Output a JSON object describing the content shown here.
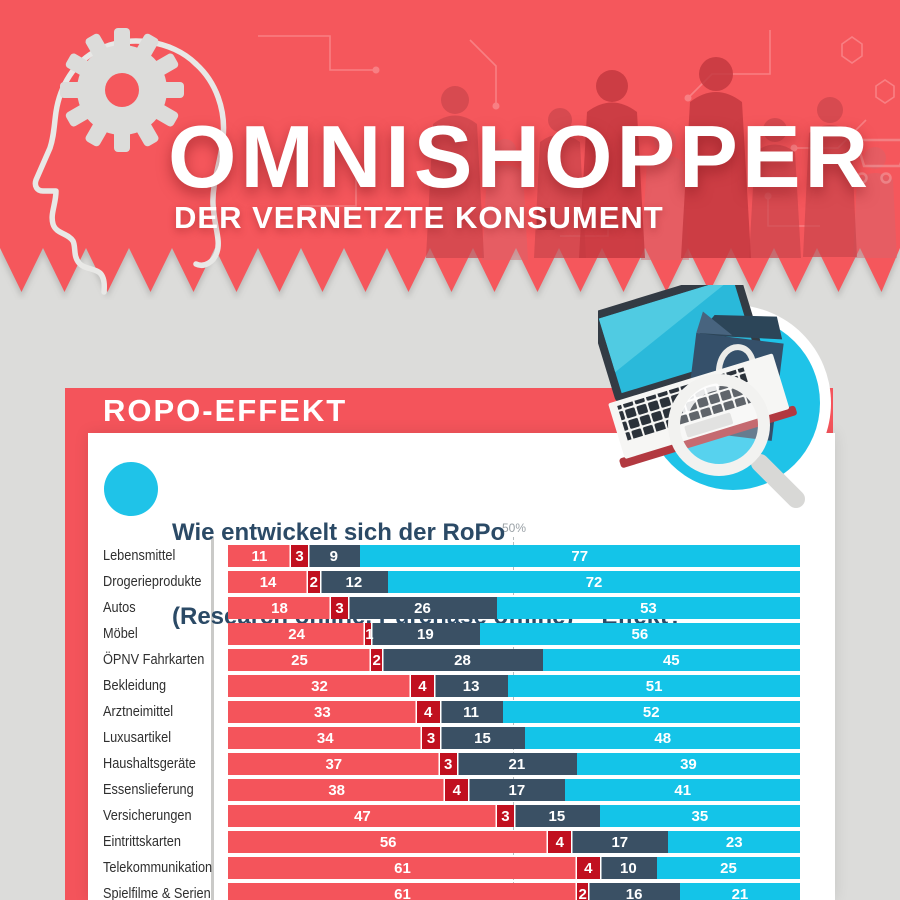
{
  "header": {
    "title": "OMNISHOPPER",
    "subtitle": "DER VERNETZTE KONSUMENT",
    "background_color": "#f5575c",
    "illustration": "head-profile-with-gear-icon",
    "backdrop": "shopper-silhouettes-and-circuit-traces"
  },
  "section": {
    "banner_label": "ROPO-EFFEKT",
    "banner_color": "#f4545b",
    "illustration": "laptop-shopping-bag-magnifier-icon"
  },
  "question": {
    "line1": "Wie entwickelt sich der RoPo",
    "line2": "(Research online, Purchase offline)  - Effekt?"
  },
  "colors": {
    "header_coral": "#f5575c",
    "bar_coral": "#f4545b",
    "bar_dark_red": "#c1101f",
    "bar_navy": "#3a5064",
    "bar_cyan": "#14c4e8",
    "accent_cyan": "#1fc3e8",
    "background_gray": "#dcdcda",
    "card_white": "#ffffff",
    "question_navy": "#2b4a66"
  },
  "chart_data": {
    "type": "bar",
    "variant": "horizontal-stacked",
    "title": "Wie entwickelt sich der RoPo (Research online, Purchase offline) - Effekt?",
    "unit": "percent",
    "xlim": [
      0,
      100
    ],
    "axis": {
      "gridline_value": 50,
      "gridline_label": "50%",
      "gridline_style": "dashed"
    },
    "legend_visible": false,
    "series_colors": [
      "#f4545b",
      "#c1101f",
      "#3a5064",
      "#14c4e8"
    ],
    "rows": [
      {
        "label": "Lebensmittel",
        "values": [
          11,
          3,
          9,
          77
        ]
      },
      {
        "label": "Drogerieprodukte",
        "values": [
          14,
          2,
          12,
          72
        ]
      },
      {
        "label": "Autos",
        "values": [
          18,
          3,
          26,
          53
        ]
      },
      {
        "label": "Möbel",
        "values": [
          24,
          1,
          19,
          56
        ]
      },
      {
        "label": "ÖPNV Fahrkarten",
        "values": [
          25,
          2,
          28,
          45
        ]
      },
      {
        "label": "Bekleidung",
        "values": [
          32,
          4,
          13,
          51
        ]
      },
      {
        "label": "Arztneimittel",
        "values": [
          33,
          4,
          11,
          52
        ]
      },
      {
        "label": "Luxusartikel",
        "values": [
          34,
          3,
          15,
          48
        ]
      },
      {
        "label": "Haushaltsgeräte",
        "values": [
          37,
          3,
          21,
          39
        ]
      },
      {
        "label": "Essenslieferung",
        "values": [
          38,
          4,
          17,
          41
        ]
      },
      {
        "label": "Versicherungen",
        "values": [
          47,
          3,
          15,
          35
        ]
      },
      {
        "label": "Eintrittskarten",
        "values": [
          56,
          4,
          17,
          23
        ]
      },
      {
        "label": "Telekommunikation",
        "values": [
          61,
          4,
          10,
          25
        ]
      },
      {
        "label": "Spielfilme & Serien",
        "values": [
          61,
          2,
          16,
          21
        ]
      }
    ]
  }
}
